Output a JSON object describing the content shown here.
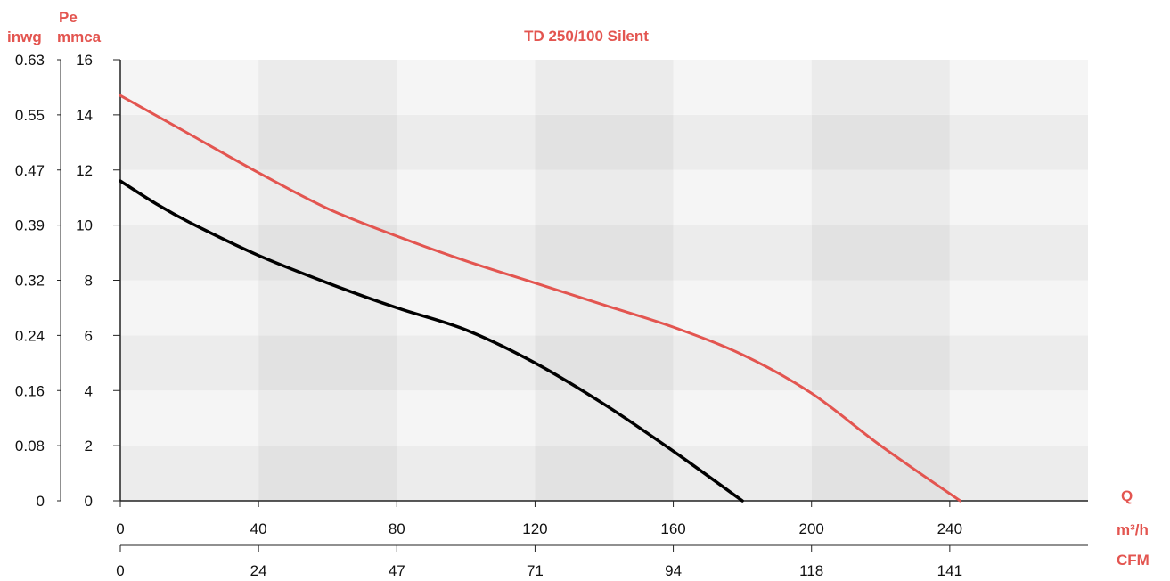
{
  "chart_data": {
    "type": "line",
    "title": "TD 250/100 Silent",
    "y_units_primary": [
      "Pe",
      "mmca"
    ],
    "y_unit_secondary": "inwg",
    "x_units": [
      "Q",
      "m³/h",
      "CFM"
    ],
    "xlim": [
      0,
      280
    ],
    "ylim": [
      0,
      16
    ],
    "x_ticks": [
      0,
      40,
      80,
      120,
      160,
      200,
      240
    ],
    "x_ticks_cfm": [
      "0",
      "24",
      "47",
      "71",
      "94",
      "118",
      "141"
    ],
    "y_ticks": [
      0,
      2,
      4,
      6,
      8,
      10,
      12,
      14,
      16
    ],
    "y_ticks_inwg": [
      "0",
      "0.08",
      "0.16",
      "0.24",
      "0.32",
      "0.39",
      "0.47",
      "0.55",
      "0.63"
    ],
    "grid": "alternating bands",
    "series": [
      {
        "color": "#e35550",
        "x": [
          0,
          20,
          40,
          60,
          80,
          100,
          120,
          140,
          160,
          180,
          200,
          220,
          243
        ],
        "y": [
          14.7,
          13.3,
          11.9,
          10.6,
          9.6,
          8.7,
          7.9,
          7.1,
          6.3,
          5.3,
          3.9,
          2.0,
          0
        ]
      },
      {
        "color": "#000000",
        "x": [
          0,
          10,
          20,
          40,
          60,
          80,
          100,
          120,
          140,
          160,
          180
        ],
        "y": [
          11.6,
          10.8,
          10.1,
          8.9,
          7.9,
          7.0,
          6.2,
          5.0,
          3.5,
          1.8,
          0
        ]
      }
    ]
  }
}
